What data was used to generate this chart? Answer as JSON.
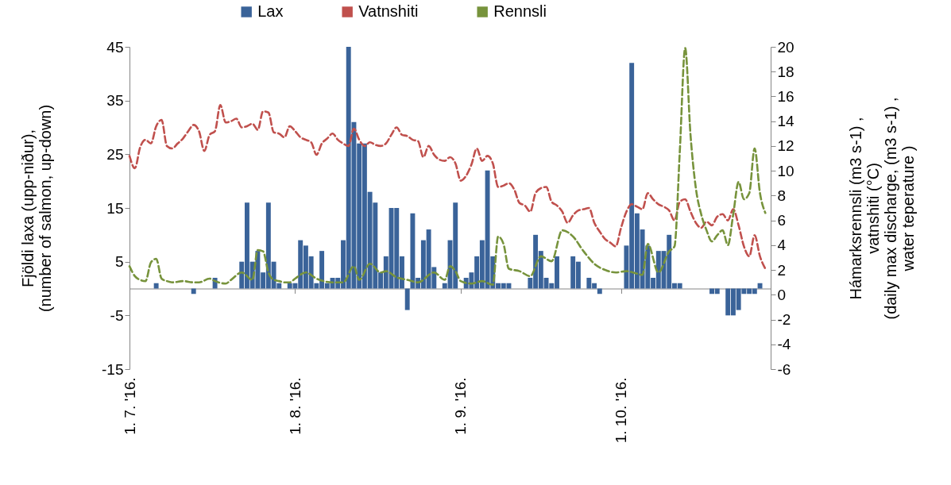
{
  "chart_data": {
    "type": "bar",
    "ylabel": "Fjöldi laxa (upp-niður),\n(number of salmon, up-down)",
    "y2label": "Hámarksrennsli (m3 s-1) ,\nvatnshiti (°C)\n(daily max discharge, (m3 s-1) ,\nwater teperature )",
    "xlim": [
      "2016-07-01",
      "2016-10-29"
    ],
    "xticks": [
      {
        "value": "2016-07-01",
        "label": "1. 7. '16."
      },
      {
        "value": "2016-08-01",
        "label": "1. 8. '16."
      },
      {
        "value": "2016-09-01",
        "label": "1. 9. '16."
      },
      {
        "value": "2016-10-01",
        "label": "1. 10. '16."
      }
    ],
    "ylim": [
      -15,
      45
    ],
    "yticks": [
      -15,
      -5,
      5,
      15,
      25,
      35,
      45
    ],
    "y2lim": [
      -6,
      20
    ],
    "y2ticks": [
      -6,
      -4,
      -2,
      0,
      2,
      4,
      6,
      8,
      10,
      12,
      14,
      16,
      18,
      20
    ],
    "legend": "top",
    "line_style": "dashed",
    "x": [
      "2016-07-01",
      "2016-07-02",
      "2016-07-03",
      "2016-07-04",
      "2016-07-05",
      "2016-07-06",
      "2016-07-07",
      "2016-07-08",
      "2016-07-09",
      "2016-07-10",
      "2016-07-11",
      "2016-07-12",
      "2016-07-13",
      "2016-07-14",
      "2016-07-15",
      "2016-07-16",
      "2016-07-17",
      "2016-07-18",
      "2016-07-19",
      "2016-07-20",
      "2016-07-21",
      "2016-07-22",
      "2016-07-23",
      "2016-07-24",
      "2016-07-25",
      "2016-07-26",
      "2016-07-27",
      "2016-07-28",
      "2016-07-29",
      "2016-07-30",
      "2016-07-31",
      "2016-08-01",
      "2016-08-02",
      "2016-08-03",
      "2016-08-04",
      "2016-08-05",
      "2016-08-06",
      "2016-08-07",
      "2016-08-08",
      "2016-08-09",
      "2016-08-10",
      "2016-08-11",
      "2016-08-12",
      "2016-08-13",
      "2016-08-14",
      "2016-08-15",
      "2016-08-16",
      "2016-08-17",
      "2016-08-18",
      "2016-08-19",
      "2016-08-20",
      "2016-08-21",
      "2016-08-22",
      "2016-08-23",
      "2016-08-24",
      "2016-08-25",
      "2016-08-26",
      "2016-08-27",
      "2016-08-28",
      "2016-08-29",
      "2016-08-30",
      "2016-08-31",
      "2016-09-01",
      "2016-09-02",
      "2016-09-03",
      "2016-09-04",
      "2016-09-05",
      "2016-09-06",
      "2016-09-07",
      "2016-09-08",
      "2016-09-09",
      "2016-09-10",
      "2016-09-11",
      "2016-09-12",
      "2016-09-13",
      "2016-09-14",
      "2016-09-15",
      "2016-09-16",
      "2016-09-17",
      "2016-09-18",
      "2016-09-19",
      "2016-09-20",
      "2016-09-21",
      "2016-09-22",
      "2016-09-23",
      "2016-09-24",
      "2016-09-25",
      "2016-09-26",
      "2016-09-27",
      "2016-09-28",
      "2016-09-29",
      "2016-09-30",
      "2016-10-01",
      "2016-10-02",
      "2016-10-03",
      "2016-10-04",
      "2016-10-05",
      "2016-10-06",
      "2016-10-07",
      "2016-10-08",
      "2016-10-09",
      "2016-10-10",
      "2016-10-11",
      "2016-10-12",
      "2016-10-13",
      "2016-10-14",
      "2016-10-15",
      "2016-10-16",
      "2016-10-17",
      "2016-10-18",
      "2016-10-19",
      "2016-10-20",
      "2016-10-21",
      "2016-10-22",
      "2016-10-23",
      "2016-10-24",
      "2016-10-25",
      "2016-10-26",
      "2016-10-27",
      "2016-10-28"
    ],
    "series": [
      {
        "name": "Lax",
        "color": "#3a6399",
        "x": [
          "2016-07-06",
          "2016-07-13",
          "2016-07-17",
          "2016-07-22",
          "2016-07-23",
          "2016-07-24",
          "2016-07-25",
          "2016-07-26",
          "2016-07-27",
          "2016-07-28",
          "2016-07-29",
          "2016-07-31",
          "2016-08-01",
          "2016-08-02",
          "2016-08-03",
          "2016-08-04",
          "2016-08-05",
          "2016-08-06",
          "2016-08-07",
          "2016-08-08",
          "2016-08-09",
          "2016-08-10",
          "2016-08-11",
          "2016-08-12",
          "2016-08-13",
          "2016-08-14",
          "2016-08-15",
          "2016-08-16",
          "2016-08-17",
          "2016-08-18",
          "2016-08-19",
          "2016-08-20",
          "2016-08-21",
          "2016-08-22",
          "2016-08-23",
          "2016-08-24",
          "2016-08-25",
          "2016-08-26",
          "2016-08-27",
          "2016-08-29",
          "2016-08-30",
          "2016-08-31",
          "2016-09-02",
          "2016-09-03",
          "2016-09-04",
          "2016-09-05",
          "2016-09-06",
          "2016-09-07",
          "2016-09-08",
          "2016-09-09",
          "2016-09-10",
          "2016-09-14",
          "2016-09-15",
          "2016-09-16",
          "2016-09-17",
          "2016-09-18",
          "2016-09-19",
          "2016-09-22",
          "2016-09-23",
          "2016-09-25",
          "2016-09-26",
          "2016-09-27",
          "2016-10-02",
          "2016-10-03",
          "2016-10-04",
          "2016-10-05",
          "2016-10-06",
          "2016-10-07",
          "2016-10-08",
          "2016-10-09",
          "2016-10-10",
          "2016-10-11",
          "2016-10-12",
          "2016-10-18",
          "2016-10-19",
          "2016-10-21",
          "2016-10-22",
          "2016-10-23",
          "2016-10-24",
          "2016-10-25",
          "2016-10-26",
          "2016-10-27"
        ],
        "values": [
          1,
          -1,
          2,
          5,
          16,
          5,
          7,
          3,
          16,
          5,
          1,
          1,
          1,
          9,
          8,
          6,
          1,
          7,
          1,
          2,
          2,
          9,
          45,
          31,
          27,
          27,
          18,
          16,
          3,
          6,
          15,
          15,
          6,
          -4,
          14,
          2,
          9,
          11,
          4,
          1,
          9,
          16,
          2,
          3,
          6,
          9,
          22,
          6,
          1,
          1,
          1,
          2,
          10,
          7,
          2,
          1,
          6,
          6,
          5,
          2,
          1,
          -1,
          8,
          42,
          14,
          11,
          8,
          2,
          7,
          7,
          10,
          1,
          1,
          -1,
          -1,
          -5,
          -5,
          -4,
          -1,
          -1,
          -1,
          1
        ]
      },
      {
        "name": "Vatnshiti",
        "type": "line",
        "axis": "y2",
        "color": "#c0504d",
        "values": [
          11.2,
          10.2,
          11.9,
          12.5,
          12.2,
          13.6,
          14.1,
          12.0,
          11.8,
          12.2,
          12.6,
          13.2,
          13.7,
          13.2,
          11.6,
          12.9,
          13.2,
          15.3,
          13.9,
          14.0,
          14.2,
          13.5,
          13.6,
          13.8,
          13.3,
          14.8,
          14.7,
          13.1,
          13.0,
          12.7,
          13.6,
          13.2,
          12.7,
          12.5,
          12.3,
          11.3,
          12.2,
          12.6,
          13.0,
          12.5,
          12.2,
          12.0,
          13.4,
          12.5,
          12.0,
          12.3,
          12.1,
          12.0,
          12.2,
          12.9,
          13.5,
          12.9,
          12.8,
          12.5,
          12.4,
          11.1,
          12.0,
          11.3,
          10.9,
          10.8,
          11.1,
          10.6,
          9.2,
          9.6,
          10.5,
          11.8,
          10.8,
          11.2,
          10.6,
          8.7,
          8.8,
          9.0,
          8.5,
          7.4,
          7.2,
          6.7,
          8.2,
          8.6,
          8.7,
          7.5,
          7.2,
          6.7,
          5.8,
          6.4,
          6.8,
          6.9,
          7.0,
          5.8,
          5.1,
          4.5,
          4.2,
          3.9,
          5.4,
          6.7,
          7.3,
          7.1,
          6.9,
          8.2,
          7.7,
          7.3,
          7.1,
          6.8,
          6.0,
          7.5,
          7.7,
          6.7,
          5.8,
          5.4,
          5.9,
          5.6,
          6.3,
          6.5,
          6.0,
          6.9,
          5.6,
          3.9,
          3.1,
          4.8,
          3.1,
          2.1
        ]
      },
      {
        "name": "Rennsli",
        "type": "line",
        "axis": "y2",
        "color": "#77933c",
        "x": [
          "2016-07-01",
          "2016-07-02",
          "2016-07-03",
          "2016-07-04",
          "2016-07-05",
          "2016-07-06",
          "2016-07-07",
          "2016-07-08",
          "2016-07-09",
          "2016-07-11",
          "2016-07-13",
          "2016-07-14",
          "2016-07-16",
          "2016-07-17",
          "2016-07-19",
          "2016-07-20",
          "2016-07-22",
          "2016-07-24",
          "2016-07-25",
          "2016-07-26",
          "2016-07-27",
          "2016-07-28",
          "2016-07-29",
          "2016-07-30",
          "2016-07-31",
          "2016-08-01",
          "2016-08-03",
          "2016-08-05",
          "2016-08-08",
          "2016-08-10",
          "2016-08-12",
          "2016-08-13",
          "2016-08-15",
          "2016-08-17",
          "2016-08-18",
          "2016-08-20",
          "2016-08-22",
          "2016-08-24",
          "2016-08-27",
          "2016-08-29",
          "2016-08-30",
          "2016-08-31",
          "2016-09-01",
          "2016-09-03",
          "2016-09-05",
          "2016-09-07",
          "2016-09-08",
          "2016-09-09",
          "2016-09-10",
          "2016-09-12",
          "2016-09-14",
          "2016-09-16",
          "2016-09-18",
          "2016-09-20",
          "2016-09-22",
          "2016-09-24",
          "2016-09-26",
          "2016-09-28",
          "2016-09-30",
          "2016-10-02",
          "2016-10-04",
          "2016-10-05",
          "2016-10-06",
          "2016-10-08",
          "2016-10-10",
          "2016-10-11",
          "2016-10-12",
          "2016-10-13",
          "2016-10-14",
          "2016-10-15",
          "2016-10-16",
          "2016-10-17",
          "2016-10-18",
          "2016-10-19",
          "2016-10-20",
          "2016-10-21",
          "2016-10-22",
          "2016-10-23",
          "2016-10-24",
          "2016-10-25",
          "2016-10-26",
          "2016-10-27",
          "2016-10-28"
        ],
        "values": [
          2.3,
          1.5,
          1.2,
          1.1,
          2.6,
          2.9,
          1.3,
          1.1,
          1.0,
          1.1,
          1.0,
          1.0,
          1.3,
          1.1,
          0.9,
          1.2,
          1.8,
          1.2,
          3.6,
          3.5,
          1.8,
          1.2,
          1.1,
          1.0,
          1.0,
          1.3,
          1.8,
          1.3,
          1.0,
          1.0,
          2.3,
          1.2,
          2.5,
          1.8,
          1.9,
          1.4,
          1.2,
          1.0,
          1.8,
          1.2,
          2.3,
          1.9,
          1.1,
          0.9,
          1.1,
          0.8,
          4.7,
          4.1,
          2.1,
          1.9,
          1.5,
          3.1,
          2.7,
          5.2,
          4.7,
          3.5,
          2.5,
          2.0,
          1.8,
          1.9,
          1.7,
          1.6,
          4.1,
          1.8,
          3.5,
          3.9,
          11.6,
          19.9,
          12.9,
          8.6,
          6.5,
          5.2,
          4.3,
          4.8,
          5.2,
          4.0,
          6.5,
          9.1,
          7.7,
          8.2,
          11.8,
          8.2,
          6.6
        ]
      }
    ]
  }
}
